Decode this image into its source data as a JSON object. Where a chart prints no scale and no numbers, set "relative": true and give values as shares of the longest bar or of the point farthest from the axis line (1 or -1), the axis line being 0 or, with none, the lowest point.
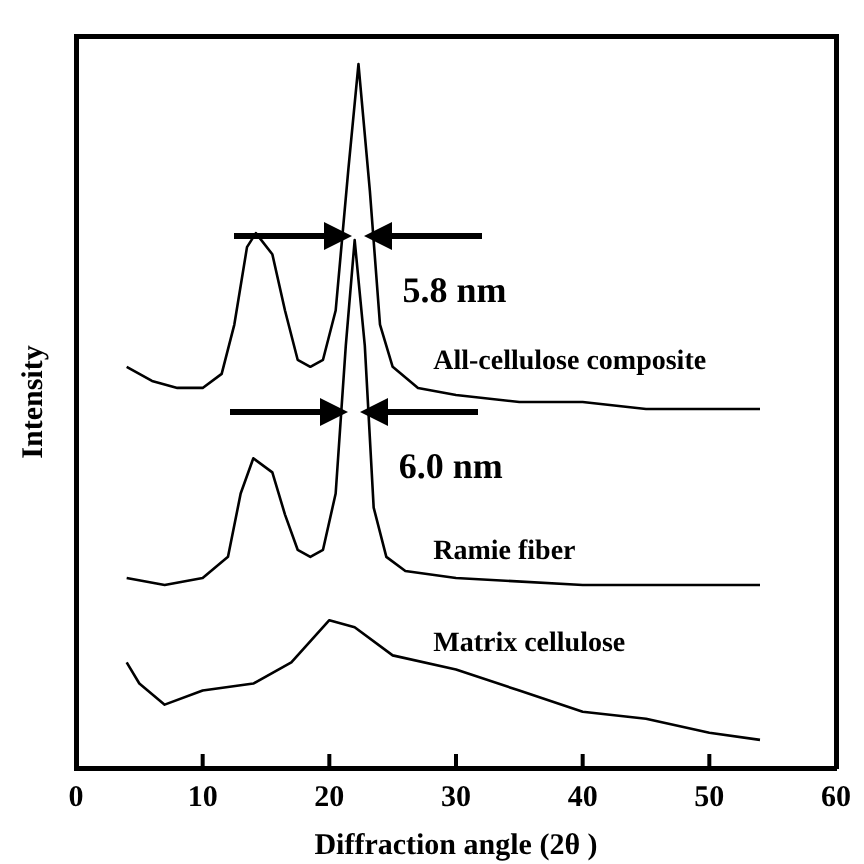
{
  "chart_data": {
    "type": "line",
    "relative": true,
    "xlabel": "Diffraction angle (2θ )",
    "ylabel": "Intensity",
    "xlim": [
      0,
      60
    ],
    "xticks": [
      0,
      10,
      20,
      30,
      40,
      50,
      60
    ],
    "grid": false,
    "legend": false,
    "marker": "none",
    "line_style": "solid",
    "annotations": [
      "5.8 nm",
      "6.0 nm"
    ],
    "series": [
      {
        "name": "All-cellulose composite",
        "color": "#000000",
        "x": [
          4,
          6,
          8,
          10,
          11.5,
          12.5,
          13.5,
          14.2,
          15.5,
          16.5,
          17.5,
          18.5,
          19.5,
          20.5,
          21.5,
          22.3,
          23.2,
          24,
          25,
          27,
          30,
          35,
          40,
          45,
          54
        ],
        "values": [
          0.57,
          0.55,
          0.54,
          0.54,
          0.56,
          0.63,
          0.74,
          0.76,
          0.73,
          0.65,
          0.58,
          0.57,
          0.58,
          0.65,
          0.85,
          1,
          0.82,
          0.63,
          0.57,
          0.54,
          0.53,
          0.52,
          0.52,
          0.51,
          0.51
        ]
      },
      {
        "name": "Ramie fiber",
        "color": "#000000",
        "x": [
          4,
          7,
          10,
          12,
          13,
          14,
          15.5,
          16.5,
          17.5,
          18.5,
          19.5,
          20.5,
          21.3,
          22,
          22.8,
          23.5,
          24.5,
          26,
          30,
          40,
          54
        ],
        "values": [
          0.27,
          0.26,
          0.27,
          0.3,
          0.39,
          0.44,
          0.42,
          0.36,
          0.31,
          0.3,
          0.31,
          0.39,
          0.6,
          0.75,
          0.6,
          0.37,
          0.3,
          0.28,
          0.27,
          0.26,
          0.26
        ]
      },
      {
        "name": "Matrix cellulose",
        "color": "#000000",
        "x": [
          4,
          5,
          7,
          10,
          14,
          17,
          20,
          22,
          25,
          30,
          35,
          40,
          45,
          50,
          54
        ],
        "values": [
          0.15,
          0.12,
          0.09,
          0.11,
          0.12,
          0.15,
          0.21,
          0.2,
          0.16,
          0.14,
          0.11,
          0.08,
          0.07,
          0.05,
          0.04
        ]
      }
    ]
  }
}
